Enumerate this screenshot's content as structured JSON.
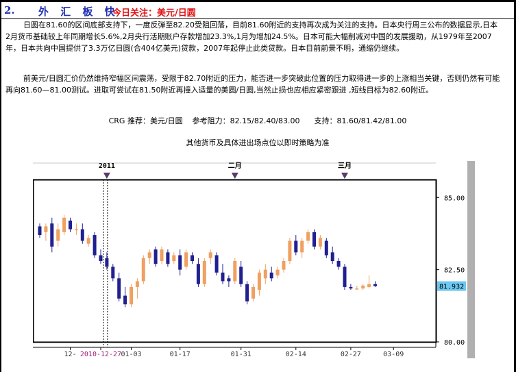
{
  "header": {
    "number": "2.",
    "title": "外 汇 板 快",
    "focus": "今日关注：美元/日圆"
  },
  "paragraphs": {
    "p1": "日圆在81.60的区间底部支持下，一度反弹至82.20受阻回落，目前81.60附近的支持再次成为关注的支持。日本央行周三公布的数据显示,日本2月货币基础较上年同期增长5.6%,2月央行活期账户存款增加23.3%,1月为增加24.5%。日本可能大幅削减对中国的发展援助，从1979年至2007年，日本共向中国提供了3.3万亿日圆(合404亿美元)贷款，2007年起停止此类贷款。日本目前前景不明，通缩仍继续。",
    "p2": "前美元/日圆汇价仍然维持窄幅区间震荡，受限于82.70附近的压力，能否进一步突破此位置的压力取得进一步的上涨相当关键，否则仍然有可能再向81.60—81.00测试。进取可尝试在81.50附近再撞入适量的美圆/日圆,当然止损也应相应紧密跟进 ,短线目标为82.60附近。"
  },
  "recommendation": {
    "text": "CRG 推荐：美元/日圆    参考阻力：82.15/82.40/83.00      支持：81.60/81.42/81.00"
  },
  "note": "其他货币及具体进出场点位以即时策略为准",
  "chart_data": {
    "type": "candlestick",
    "pair": "USD/JPY",
    "y_ticks": [
      "85.00",
      "82.50",
      "80.00"
    ],
    "ylim": [
      80.0,
      85.6
    ],
    "current_price": "81.932",
    "top_labels": [
      {
        "text": "2011",
        "index": 11
      },
      {
        "text": "二月",
        "index": 32
      },
      {
        "text": "三月",
        "index": 50
      }
    ],
    "x_labels": [
      {
        "text": "12-",
        "index": 5,
        "color": "#333333"
      },
      {
        "text": "2010-12-27",
        "index": 10,
        "color": "#a0207a"
      },
      {
        "text": "01-03",
        "index": 15,
        "color": "#333333"
      },
      {
        "text": "01-17",
        "index": 23,
        "color": "#333333"
      },
      {
        "text": "01-31",
        "index": 33,
        "color": "#333333"
      },
      {
        "text": "02-14",
        "index": 42,
        "color": "#333333"
      },
      {
        "text": "02-27",
        "index": 51,
        "color": "#333333"
      },
      {
        "text": "03-09",
        "index": 58,
        "color": "#333333"
      }
    ],
    "marker_index": 11,
    "colors": {
      "up": "#f0a060",
      "down": "#202090",
      "price_tag": "#6cc8f0",
      "scroll": "#b0b0b0"
    },
    "candles": [
      {
        "o": 84.0,
        "h": 84.1,
        "l": 83.6,
        "c": 83.7
      },
      {
        "o": 83.8,
        "h": 84.1,
        "l": 83.5,
        "c": 84.0
      },
      {
        "o": 84.1,
        "h": 84.3,
        "l": 83.1,
        "c": 83.3
      },
      {
        "o": 83.5,
        "h": 84.1,
        "l": 83.3,
        "c": 83.9
      },
      {
        "o": 83.8,
        "h": 84.4,
        "l": 83.7,
        "c": 84.3
      },
      {
        "o": 84.2,
        "h": 84.3,
        "l": 83.8,
        "c": 83.9
      },
      {
        "o": 83.9,
        "h": 84.1,
        "l": 83.7,
        "c": 83.9
      },
      {
        "o": 83.9,
        "h": 84.1,
        "l": 83.4,
        "c": 83.5
      },
      {
        "o": 83.4,
        "h": 83.7,
        "l": 83.3,
        "c": 83.6
      },
      {
        "o": 83.7,
        "h": 83.8,
        "l": 82.9,
        "c": 83.0
      },
      {
        "o": 83.0,
        "h": 83.2,
        "l": 82.7,
        "c": 82.8
      },
      {
        "o": 82.9,
        "h": 83.1,
        "l": 82.5,
        "c": 82.6
      },
      {
        "o": 82.6,
        "h": 82.7,
        "l": 82.1,
        "c": 82.2
      },
      {
        "o": 82.2,
        "h": 82.4,
        "l": 81.4,
        "c": 81.5
      },
      {
        "o": 81.6,
        "h": 81.9,
        "l": 81.2,
        "c": 81.3
      },
      {
        "o": 81.3,
        "h": 82.0,
        "l": 81.2,
        "c": 81.9
      },
      {
        "o": 81.9,
        "h": 82.2,
        "l": 81.5,
        "c": 82.1
      },
      {
        "o": 82.1,
        "h": 83.0,
        "l": 82.0,
        "c": 82.9
      },
      {
        "o": 82.9,
        "h": 83.2,
        "l": 82.7,
        "c": 83.1
      },
      {
        "o": 83.2,
        "h": 83.3,
        "l": 82.6,
        "c": 82.7
      },
      {
        "o": 82.8,
        "h": 83.3,
        "l": 82.7,
        "c": 83.2
      },
      {
        "o": 83.1,
        "h": 83.2,
        "l": 82.6,
        "c": 82.7
      },
      {
        "o": 82.8,
        "h": 83.1,
        "l": 82.7,
        "c": 83.0
      },
      {
        "o": 83.0,
        "h": 83.2,
        "l": 82.3,
        "c": 82.5
      },
      {
        "o": 82.6,
        "h": 83.2,
        "l": 82.5,
        "c": 83.1
      },
      {
        "o": 83.0,
        "h": 83.1,
        "l": 82.7,
        "c": 82.8
      },
      {
        "o": 82.7,
        "h": 82.9,
        "l": 81.9,
        "c": 82.0
      },
      {
        "o": 82.0,
        "h": 82.9,
        "l": 81.9,
        "c": 82.8
      },
      {
        "o": 82.9,
        "h": 83.2,
        "l": 82.7,
        "c": 83.1
      },
      {
        "o": 83.0,
        "h": 83.1,
        "l": 82.3,
        "c": 82.4
      },
      {
        "o": 82.4,
        "h": 82.7,
        "l": 82.0,
        "c": 82.1
      },
      {
        "o": 82.2,
        "h": 82.3,
        "l": 81.9,
        "c": 82.1
      },
      {
        "o": 82.1,
        "h": 82.9,
        "l": 82.0,
        "c": 82.8
      },
      {
        "o": 82.6,
        "h": 82.8,
        "l": 81.9,
        "c": 82.0
      },
      {
        "o": 82.0,
        "h": 82.1,
        "l": 81.3,
        "c": 81.4
      },
      {
        "o": 81.5,
        "h": 82.0,
        "l": 81.4,
        "c": 81.9
      },
      {
        "o": 81.8,
        "h": 82.5,
        "l": 81.6,
        "c": 82.4
      },
      {
        "o": 82.2,
        "h": 82.7,
        "l": 82.0,
        "c": 82.5
      },
      {
        "o": 82.4,
        "h": 82.6,
        "l": 82.1,
        "c": 82.2
      },
      {
        "o": 82.3,
        "h": 82.6,
        "l": 82.2,
        "c": 82.5
      },
      {
        "o": 82.5,
        "h": 82.9,
        "l": 82.4,
        "c": 82.8
      },
      {
        "o": 82.8,
        "h": 83.6,
        "l": 82.7,
        "c": 83.5
      },
      {
        "o": 83.5,
        "h": 83.7,
        "l": 83.0,
        "c": 83.1
      },
      {
        "o": 83.1,
        "h": 83.6,
        "l": 82.9,
        "c": 83.5
      },
      {
        "o": 83.5,
        "h": 83.9,
        "l": 83.4,
        "c": 83.8
      },
      {
        "o": 83.8,
        "h": 83.9,
        "l": 83.2,
        "c": 83.3
      },
      {
        "o": 83.3,
        "h": 83.7,
        "l": 83.2,
        "c": 83.6
      },
      {
        "o": 83.5,
        "h": 83.6,
        "l": 82.9,
        "c": 83.0
      },
      {
        "o": 83.1,
        "h": 83.3,
        "l": 82.7,
        "c": 82.8
      },
      {
        "o": 82.8,
        "h": 82.9,
        "l": 82.5,
        "c": 82.6
      },
      {
        "o": 82.6,
        "h": 82.7,
        "l": 81.8,
        "c": 81.9
      },
      {
        "o": 81.9,
        "h": 82.0,
        "l": 81.8,
        "c": 81.85
      },
      {
        "o": 81.85,
        "h": 81.95,
        "l": 81.8,
        "c": 81.85
      },
      {
        "o": 81.85,
        "h": 82.0,
        "l": 81.8,
        "c": 81.95
      },
      {
        "o": 81.9,
        "h": 82.3,
        "l": 81.85,
        "c": 82.0
      },
      {
        "o": 82.0,
        "h": 82.1,
        "l": 81.9,
        "c": 81.93
      }
    ]
  }
}
